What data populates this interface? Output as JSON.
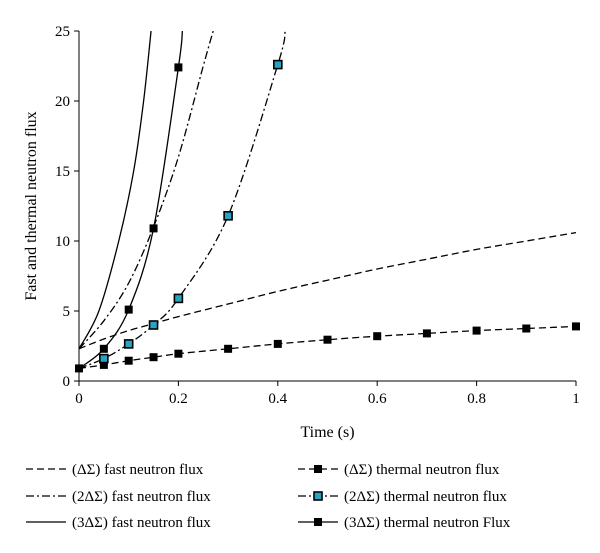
{
  "chart_data": {
    "type": "line",
    "xlabel": "Time (s)",
    "ylabel": "Fast and thermal neutron flux",
    "xlim": [
      0,
      1
    ],
    "ylim": [
      0,
      25
    ],
    "xticks": [
      0,
      0.2,
      0.4,
      0.6,
      0.8,
      1
    ],
    "yticks": [
      0,
      5,
      10,
      15,
      20,
      25
    ],
    "xtick_labels": [
      "0",
      "0.2",
      "0.4",
      "0.6",
      "0.8",
      "1"
    ],
    "ytick_labels": [
      "0",
      "5",
      "10",
      "15",
      "20",
      "25"
    ],
    "grid": false,
    "legend_position": "bottom",
    "series": [
      {
        "name": "(ΔΣ) fast neutron flux",
        "style": "dashed",
        "marker": "none",
        "x": [
          0,
          0.05,
          0.1,
          0.15,
          0.2,
          0.3,
          0.4,
          0.5,
          0.6,
          0.7,
          0.8,
          0.9,
          1.0
        ],
        "y": [
          2.3,
          3.0,
          3.6,
          4.1,
          4.6,
          5.5,
          6.4,
          7.2,
          8.0,
          8.7,
          9.4,
          10.0,
          10.6
        ]
      },
      {
        "name": "(2ΔΣ) fast neutron flux",
        "style": "dashdot",
        "marker": "none",
        "x": [
          0,
          0.05,
          0.1,
          0.15,
          0.2,
          0.25,
          0.27
        ],
        "y": [
          2.3,
          4.3,
          7.0,
          11.0,
          16.0,
          22.5,
          25
        ]
      },
      {
        "name": "(3ΔΣ) fast neutron flux",
        "style": "solid",
        "marker": "none",
        "x": [
          0,
          0.04,
          0.08,
          0.11,
          0.13,
          0.145
        ],
        "y": [
          2.3,
          5.0,
          10.0,
          15.0,
          20.0,
          25
        ]
      },
      {
        "name": "(ΔΣ) thermal neutron flux",
        "style": "dashed",
        "marker": "square",
        "marker_color": "#000000",
        "x": [
          0,
          0.05,
          0.1,
          0.15,
          0.2,
          0.3,
          0.4,
          0.5,
          0.6,
          0.7,
          0.8,
          0.9,
          1.0
        ],
        "y": [
          0.9,
          1.15,
          1.45,
          1.7,
          1.95,
          2.3,
          2.65,
          2.95,
          3.2,
          3.4,
          3.6,
          3.75,
          3.9
        ]
      },
      {
        "name": "(2ΔΣ) thermal neutron flux",
        "style": "dashdot",
        "marker": "square",
        "marker_color": "#2aa3c2",
        "x": [
          0,
          0.05,
          0.1,
          0.15,
          0.2,
          0.3,
          0.4,
          0.415
        ],
        "y": [
          0.9,
          1.6,
          2.65,
          4.0,
          5.9,
          11.8,
          22.6,
          25
        ]
      },
      {
        "name": "(3ΔΣ) thermal neutron Flux",
        "style": "solid",
        "marker": "square",
        "marker_color": "#000000",
        "x": [
          0,
          0.05,
          0.1,
          0.15,
          0.2,
          0.208
        ],
        "y": [
          0.9,
          2.3,
          5.1,
          10.9,
          22.4,
          25
        ]
      }
    ],
    "markers_shown": {
      "(ΔΣ) thermal neutron flux": [
        0,
        1,
        2,
        3,
        4,
        5,
        6,
        7,
        8,
        9,
        10,
        11,
        12
      ],
      "(2ΔΣ) thermal neutron flux": [
        1,
        2,
        3,
        4,
        5,
        6
      ],
      "(3ΔΣ) thermal neutron Flux": [
        1,
        2,
        3,
        4
      ]
    }
  }
}
